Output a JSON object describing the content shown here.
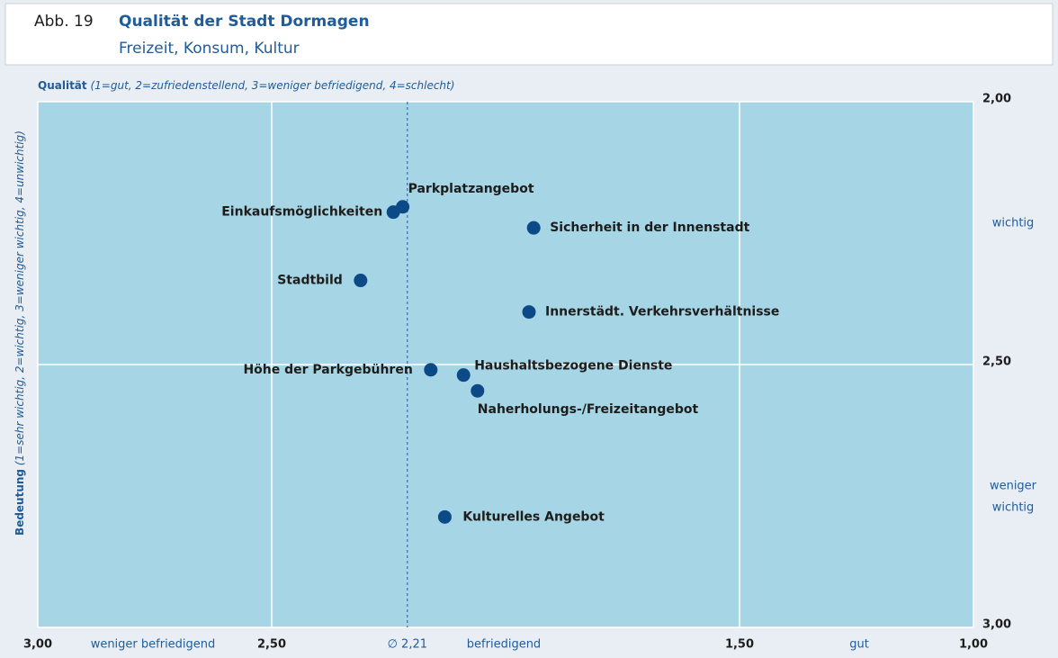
{
  "figure": "Abb. 19",
  "chart_data": {
    "type": "scatter",
    "title": "Qualität der Stadt Dormagen",
    "subtitle": "Freizeit, Konsum, Kultur",
    "x_label": {
      "name": "Qualität",
      "detail": "(1=gut, 2=zufriedenstellend, 3=weniger befriedigend, 4=schlecht)"
    },
    "y_label": {
      "name": "Bedeutung",
      "detail": "(1=sehr wichtig, 2=wichtig, 3=weniger wichtig, 4=unwichtig)"
    },
    "xlim": [
      3.0,
      1.0
    ],
    "ylim": [
      3.0,
      2.0
    ],
    "xticks": [
      {
        "value": 3.0,
        "label": "3,00"
      },
      {
        "value": 2.5,
        "label": "2,50"
      },
      {
        "value": 1.5,
        "label": "1,50"
      },
      {
        "value": 1.0,
        "label": "1,00"
      }
    ],
    "yticks": [
      {
        "value": 2.0,
        "label": "2,00"
      },
      {
        "value": 2.5,
        "label": "2,50"
      },
      {
        "value": 3.0,
        "label": "3,00"
      }
    ],
    "grid": true,
    "average_x": {
      "value": 2.21,
      "label": "∅ 2,21"
    },
    "x_scale_notes": [
      "weniger befriedigend",
      "befriedigend",
      "gut"
    ],
    "y_scale_notes": [
      [
        "wichtig"
      ],
      [
        "weniger",
        "wichtig"
      ]
    ],
    "color": "#0b4a87",
    "labels": [
      "Parkplatzangebot",
      "Einkaufsmöglichkeiten",
      "Sicherheit in der Innenstadt",
      "Stadtbild",
      "Innerstädt. Verkehrsverhältnisse",
      "Höhe der Parkgebühren",
      "Haushaltsbezogene Dienste",
      "Naherholungs-/Freizeitangebot",
      "Kulturelles Angebot"
    ],
    "x": [
      2.22,
      2.24,
      1.94,
      2.31,
      1.95,
      2.16,
      2.09,
      2.06,
      2.13
    ],
    "y": [
      2.2,
      2.21,
      2.24,
      2.34,
      2.4,
      2.51,
      2.52,
      2.55,
      2.79
    ]
  }
}
